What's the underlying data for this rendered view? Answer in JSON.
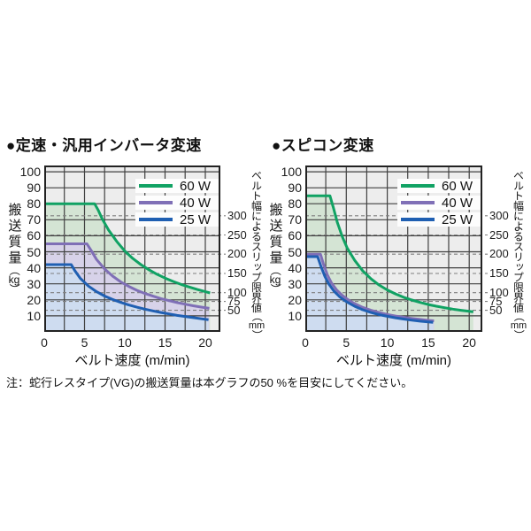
{
  "note": "注：蛇行レスタイプ(VG)の搬送質量は本グラフの50 %を目安にしてください。",
  "colors": {
    "green": "#10a263",
    "purple": "#7f6fb6",
    "blue": "#1f5fb2",
    "green_fill": "#d4e4d4",
    "purple_fill": "#d7d2e9",
    "blue_fill": "#cedcf0",
    "plot_bg": "#ededed",
    "grid": "#404040",
    "dashed": "#7e7e7e",
    "border": "#222222"
  },
  "legend_items": [
    {
      "label": "60 W",
      "color": "green"
    },
    {
      "label": "40 W",
      "color": "purple"
    },
    {
      "label": "25 W",
      "color": "blue"
    }
  ],
  "axis_labels": {
    "y_title": "搬送質量",
    "y_unit": "kg",
    "y2_title": "ベルト幅によるスリップ限界値",
    "y2_unit": "mm",
    "x_title": "ベルト速度 (m/min)",
    "paren_open": "（",
    "paren_close": "）"
  },
  "chart_data": [
    {
      "type": "area",
      "title": "●定速・汎用インバータ変速",
      "xlabel": "ベルト速度 (m/min)",
      "ylabel": "搬送質量 (kg)",
      "y2label": "ベルト幅によるスリップ限界値 (mm)",
      "xlim": [
        0,
        21.87
      ],
      "ylim": [
        0,
        103.9
      ],
      "x_ticks": [
        0,
        5,
        10,
        15,
        20
      ],
      "x_minor_step": 2.5,
      "y_ticks": [
        10,
        20,
        30,
        40,
        50,
        60,
        70,
        80,
        90,
        100
      ],
      "y2_ticks": [
        {
          "mm": 300,
          "kg": 72.5
        },
        {
          "mm": 250,
          "kg": 60.5
        },
        {
          "mm": 200,
          "kg": 48.5
        },
        {
          "mm": 150,
          "kg": 36.5
        },
        {
          "mm": 100,
          "kg": 24.5
        },
        {
          "mm": 75,
          "kg": 19
        },
        {
          "mm": 50,
          "kg": 13.5
        }
      ],
      "series": [
        {
          "name": "60 W",
          "color": "green",
          "points": [
            [
              0,
              80
            ],
            [
              6.25,
              80
            ],
            [
              6.7,
              76
            ],
            [
              7.2,
              70.5
            ],
            [
              8,
              63.5
            ],
            [
              9,
              56.5
            ],
            [
              10,
              50.5
            ],
            [
              11,
              45.8
            ],
            [
              12,
              42
            ],
            [
              13,
              38.8
            ],
            [
              14,
              36
            ],
            [
              15,
              33.6
            ],
            [
              16,
              31.5
            ],
            [
              17,
              29.6
            ],
            [
              18,
              28
            ],
            [
              19,
              26.5
            ],
            [
              20,
              25.1
            ],
            [
              20.6,
              24.3
            ]
          ]
        },
        {
          "name": "40 W",
          "color": "purple",
          "points": [
            [
              0,
              55
            ],
            [
              5.3,
              55
            ],
            [
              5.8,
              51
            ],
            [
              6.5,
              45.2
            ],
            [
              7.5,
              39.3
            ],
            [
              8.5,
              34.8
            ],
            [
              9.5,
              31.2
            ],
            [
              10.5,
              28.4
            ],
            [
              11.5,
              26
            ],
            [
              12.5,
              24
            ],
            [
              13.5,
              22.3
            ],
            [
              14.5,
              20.8
            ],
            [
              15.5,
              19.5
            ],
            [
              16.5,
              18.3
            ],
            [
              17.5,
              17.3
            ],
            [
              18.5,
              16.3
            ],
            [
              19.5,
              15.5
            ],
            [
              20.5,
              14.7
            ]
          ]
        },
        {
          "name": "25 W",
          "color": "blue",
          "points": [
            [
              0,
              42
            ],
            [
              3.35,
              42
            ],
            [
              3.8,
              38.2
            ],
            [
              4.5,
              33.3
            ],
            [
              5.5,
              28.6
            ],
            [
              6.5,
              25.1
            ],
            [
              7.5,
              22.4
            ],
            [
              8.5,
              20.2
            ],
            [
              9.5,
              18.4
            ],
            [
              10.5,
              16.8
            ],
            [
              11.5,
              15.4
            ],
            [
              12.5,
              14.2
            ],
            [
              13.5,
              13.1
            ],
            [
              14.5,
              12.1
            ],
            [
              15.5,
              11.2
            ],
            [
              16.5,
              10.3
            ],
            [
              17.5,
              9.6
            ],
            [
              18.5,
              8.9
            ],
            [
              19.5,
              8.2
            ],
            [
              20.4,
              7.6
            ]
          ]
        }
      ]
    },
    {
      "type": "area",
      "title": "●スピコン変速",
      "xlabel": "ベルト速度 (m/min)",
      "ylabel": "搬送質量 (kg)",
      "y2label": "ベルト幅によるスリップ限界値 (mm)",
      "xlim": [
        0,
        21.6
      ],
      "ylim": [
        0,
        103.9
      ],
      "x_ticks": [
        0,
        5,
        10,
        15,
        20
      ],
      "x_minor_step": 2.5,
      "y_ticks": [
        10,
        20,
        30,
        40,
        50,
        60,
        70,
        80,
        90,
        100
      ],
      "y2_ticks": [
        {
          "mm": 300,
          "kg": 72.5
        },
        {
          "mm": 250,
          "kg": 60.5
        },
        {
          "mm": 200,
          "kg": 48.5
        },
        {
          "mm": 150,
          "kg": 36.5
        },
        {
          "mm": 100,
          "kg": 24.5
        },
        {
          "mm": 75,
          "kg": 19
        },
        {
          "mm": 50,
          "kg": 13.5
        }
      ],
      "series": [
        {
          "name": "60 W",
          "color": "green",
          "points": [
            [
              0,
              85
            ],
            [
              3,
              85
            ],
            [
              3.4,
              78
            ],
            [
              3.9,
              68.5
            ],
            [
              4.5,
              59.5
            ],
            [
              5.1,
              52.5
            ],
            [
              6,
              44.8
            ],
            [
              7,
              38.2
            ],
            [
              8,
              33.2
            ],
            [
              9,
              29.3
            ],
            [
              10,
              26.2
            ],
            [
              11,
              23.7
            ],
            [
              12,
              21.6
            ],
            [
              13,
              19.9
            ],
            [
              14,
              18.4
            ],
            [
              15,
              17.1
            ],
            [
              16,
              16
            ],
            [
              17,
              15.1
            ],
            [
              18,
              14.2
            ],
            [
              19,
              13.5
            ],
            [
              20,
              12.8
            ],
            [
              20.5,
              12.5
            ]
          ]
        },
        {
          "name": "40 W",
          "color": "purple",
          "points": [
            [
              0,
              48.5
            ],
            [
              1.85,
              48.5
            ],
            [
              2.2,
              42.5
            ],
            [
              2.7,
              35.5
            ],
            [
              3.2,
              30.5
            ],
            [
              3.8,
              26.3
            ],
            [
              4.5,
              22.8
            ],
            [
              5.2,
              20.1
            ],
            [
              6,
              17.7
            ],
            [
              7,
              15.3
            ],
            [
              8,
              13.5
            ],
            [
              9,
              12.1
            ],
            [
              10,
              10.9
            ],
            [
              11,
              9.9
            ],
            [
              12,
              9.1
            ],
            [
              13,
              8.4
            ],
            [
              14,
              7.8
            ],
            [
              15,
              7.2
            ],
            [
              15.7,
              6.9
            ]
          ]
        },
        {
          "name": "25 W",
          "color": "blue",
          "points": [
            [
              0,
              47
            ],
            [
              1.5,
              47
            ],
            [
              1.9,
              41
            ],
            [
              2.4,
              34.5
            ],
            [
              2.9,
              29.6
            ],
            [
              3.5,
              25.4
            ],
            [
              4.2,
              21.9
            ],
            [
              5,
              18.9
            ],
            [
              6,
              16
            ],
            [
              7,
              13.8
            ],
            [
              8,
              12.1
            ],
            [
              9,
              10.8
            ],
            [
              10,
              9.7
            ],
            [
              11,
              8.8
            ],
            [
              12,
              8
            ],
            [
              13,
              7.3
            ],
            [
              14,
              6.7
            ],
            [
              15,
              6.2
            ],
            [
              15.6,
              5.9
            ]
          ]
        }
      ]
    }
  ]
}
